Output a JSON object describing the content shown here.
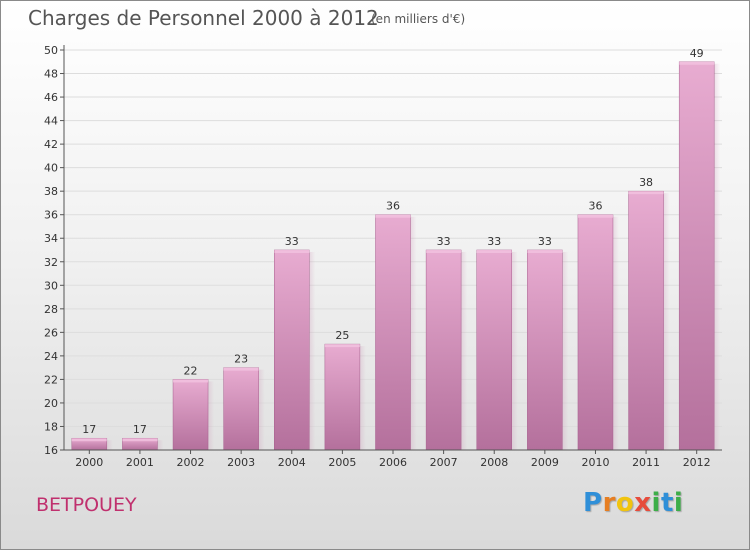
{
  "title": "Charges de Personnel 2000 à 2012",
  "subtitle": "(en milliers d'€)",
  "commune": "BETPOUEY",
  "logo": {
    "letters": [
      "P",
      "r",
      "o",
      "x",
      "i",
      "t",
      "i"
    ],
    "colors": [
      "#2f8fd8",
      "#e67e22",
      "#f1c40f",
      "#e74c3c",
      "#3dae49",
      "#2f8fd8",
      "#3dae49"
    ]
  },
  "colors": {
    "bar": "#d98ebd",
    "bar_light": "#e6a9cf",
    "bar_dark": "#b56a9a",
    "grid": "#dddddd",
    "axis": "#555555",
    "commune": "#c0306e"
  },
  "chart_data": {
    "type": "bar",
    "categories": [
      "2000",
      "2001",
      "2002",
      "2003",
      "2004",
      "2005",
      "2006",
      "2007",
      "2008",
      "2009",
      "2010",
      "2011",
      "2012"
    ],
    "values": [
      17,
      17,
      22,
      23,
      33,
      25,
      36,
      33,
      33,
      33,
      36,
      38,
      49
    ],
    "data_labels": [
      "17",
      "17",
      "22",
      "23",
      "33",
      "25",
      "36",
      "33",
      "33",
      "33",
      "36",
      "38",
      "49"
    ],
    "title": "Charges de Personnel 2000 à 2012",
    "xlabel": "",
    "ylabel": "",
    "ylim": [
      16,
      50
    ],
    "yticks": [
      16,
      18,
      20,
      22,
      24,
      26,
      28,
      30,
      32,
      34,
      36,
      38,
      40,
      42,
      44,
      46,
      48,
      50
    ],
    "grid": true,
    "legend": "none"
  }
}
